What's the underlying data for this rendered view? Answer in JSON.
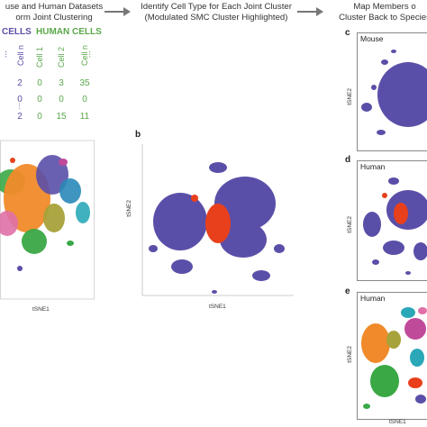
{
  "captions": {
    "left": [
      "use and Human Datasets",
      "orm Joint Clustering"
    ],
    "middle": [
      "Identify Cell Type for Each Joint Cluster",
      "(Modulated SMC Cluster Highlighted)"
    ],
    "right": [
      "Map Members o",
      "Cluster Back to Species"
    ]
  },
  "table": {
    "mouse_header": "CELLS",
    "human_header": "HUMAN CELLS",
    "ellipsis": "...",
    "mouse_columns": [
      "Cell n"
    ],
    "human_columns": [
      "Cell 1",
      "Cell 2",
      "Cell n"
    ],
    "rows": [
      {
        "mouse": [
          "2"
        ],
        "human": [
          "0",
          "3",
          "35"
        ]
      },
      {
        "mouse": [
          "0"
        ],
        "human": [
          "0",
          "0",
          "0"
        ]
      },
      {
        "mouse": [
          "2"
        ],
        "human": [
          "0",
          "15",
          "11"
        ]
      }
    ]
  },
  "panels": {
    "a": {
      "xlabel": "tSNE1"
    },
    "b": {
      "label": "b",
      "xlabel": "tSNE1",
      "ylabel": "tSNE2"
    },
    "c": {
      "label": "c",
      "species": "Mouse",
      "ylabel": "tSNE2"
    },
    "d": {
      "label": "d",
      "species": "Human",
      "ylabel": "tSNE2"
    },
    "e": {
      "label": "e",
      "species": "Human",
      "ylabel": "tSNE2",
      "xlabel": "tSNE1"
    }
  },
  "colors": {
    "purple": "#5a4fa8",
    "smc_red": "#e8401c",
    "orange": "#f08a2a",
    "green": "#3aa845",
    "olive": "#a8a23a",
    "teal": "#2aa8b8",
    "pink": "#e070a8"
  }
}
